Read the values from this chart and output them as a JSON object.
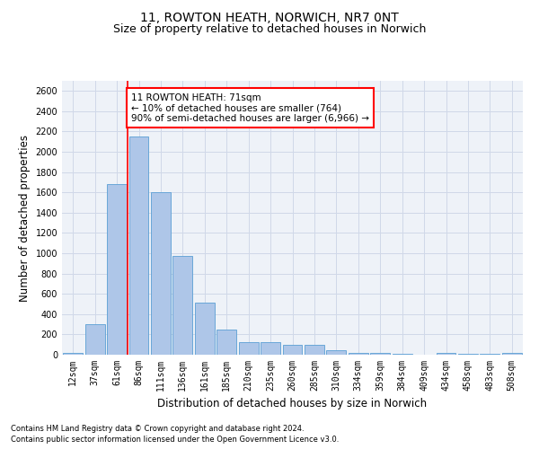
{
  "title": "11, ROWTON HEATH, NORWICH, NR7 0NT",
  "subtitle": "Size of property relative to detached houses in Norwich",
  "xlabel": "Distribution of detached houses by size in Norwich",
  "ylabel": "Number of detached properties",
  "bar_labels": [
    "12sqm",
    "37sqm",
    "61sqm",
    "86sqm",
    "111sqm",
    "136sqm",
    "161sqm",
    "185sqm",
    "210sqm",
    "235sqm",
    "260sqm",
    "285sqm",
    "310sqm",
    "334sqm",
    "359sqm",
    "384sqm",
    "409sqm",
    "434sqm",
    "458sqm",
    "483sqm",
    "508sqm"
  ],
  "bar_values": [
    20,
    300,
    1680,
    2150,
    1600,
    970,
    510,
    250,
    120,
    120,
    95,
    95,
    45,
    20,
    15,
    10,
    0,
    20,
    10,
    10,
    20
  ],
  "bar_color": "#aec6e8",
  "bar_edge_color": "#5a9fd4",
  "vline_index": 2,
  "vline_color": "red",
  "annotation_text": "11 ROWTON HEATH: 71sqm\n← 10% of detached houses are smaller (764)\n90% of semi-detached houses are larger (6,966) →",
  "annotation_box_color": "white",
  "annotation_box_edge": "red",
  "ylim": [
    0,
    2700
  ],
  "yticks": [
    0,
    200,
    400,
    600,
    800,
    1000,
    1200,
    1400,
    1600,
    1800,
    2000,
    2200,
    2400,
    2600
  ],
  "grid_color": "#d0d8e8",
  "background_color": "#eef2f8",
  "footer_line1": "Contains HM Land Registry data © Crown copyright and database right 2024.",
  "footer_line2": "Contains public sector information licensed under the Open Government Licence v3.0.",
  "title_fontsize": 10,
  "subtitle_fontsize": 9,
  "tick_fontsize": 7,
  "ylabel_fontsize": 8.5,
  "xlabel_fontsize": 8.5
}
